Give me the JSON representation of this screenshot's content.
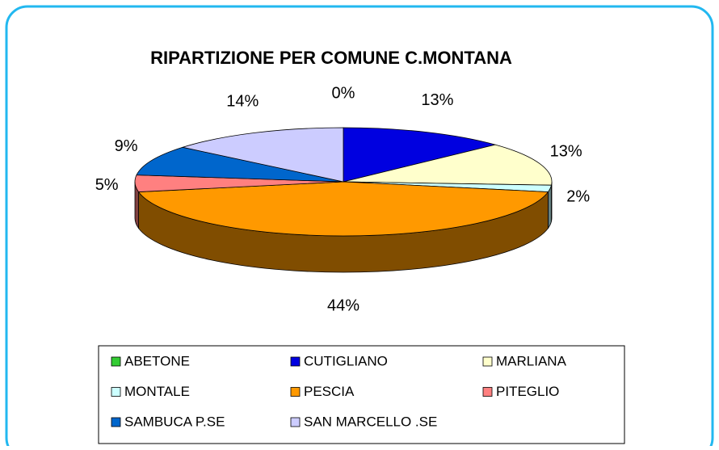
{
  "chart_data": {
    "type": "pie",
    "title": "RIPARTIZIONE PER COMUNE C.MONTANA",
    "categories": [
      "ABETONE",
      "CUTIGLIANO",
      "MARLIANA",
      "MONTALE",
      "PESCIA",
      "PITEGLIO",
      "SAMBUCA P.SE",
      "SAN MARCELLO .SE"
    ],
    "values": [
      0,
      13,
      13,
      2,
      44,
      5,
      9,
      14
    ],
    "value_labels": [
      "0%",
      "13%",
      "13%",
      "2%",
      "44%",
      "5%",
      "9%",
      "14%"
    ],
    "colors": [
      "#33cc33",
      "#0000e0",
      "#ffffcc",
      "#ccffff",
      "#ff9900",
      "#ff8080",
      "#0066cc",
      "#ccccff"
    ],
    "legend": "bottom"
  }
}
